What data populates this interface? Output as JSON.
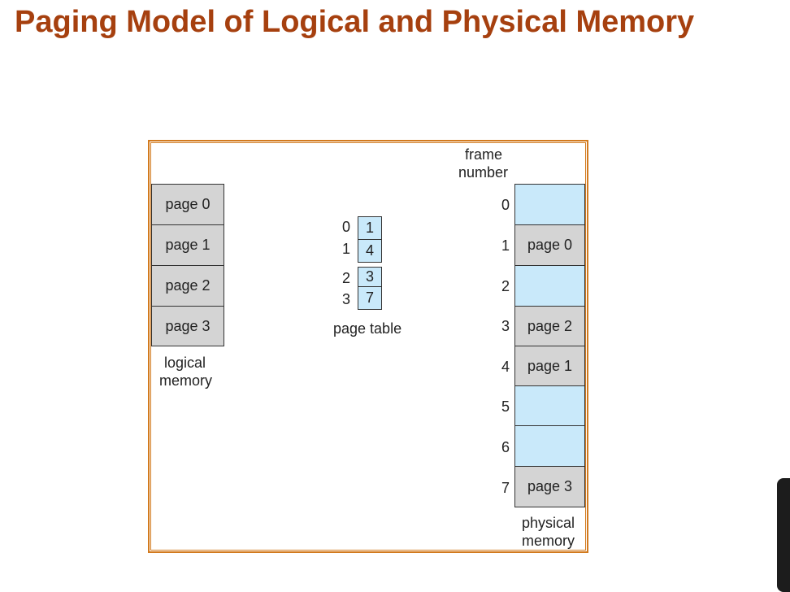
{
  "title": "Paging Model of Logical and Physical Memory",
  "logical_memory": {
    "pages": [
      "page 0",
      "page 1",
      "page 2",
      "page 3"
    ],
    "caption_line1": "logical",
    "caption_line2": "memory"
  },
  "page_table": {
    "indices": [
      "0",
      "1",
      "2",
      "3"
    ],
    "entries": [
      "1",
      "4",
      "3",
      "7"
    ],
    "caption": "page table"
  },
  "physical_memory": {
    "header_line1": "frame",
    "header_line2": "number",
    "frame_numbers": [
      "0",
      "1",
      "2",
      "3",
      "4",
      "5",
      "6",
      "7"
    ],
    "frames": [
      "",
      "page 0",
      "",
      "page 2",
      "page 1",
      "",
      "",
      "page 3"
    ],
    "caption_line1": "physical",
    "caption_line2": "memory"
  },
  "colors": {
    "title": "#a6400f",
    "frame_border": "#d27a1e",
    "occupied": "#d4d4d4",
    "free": "#c9e9fa"
  }
}
